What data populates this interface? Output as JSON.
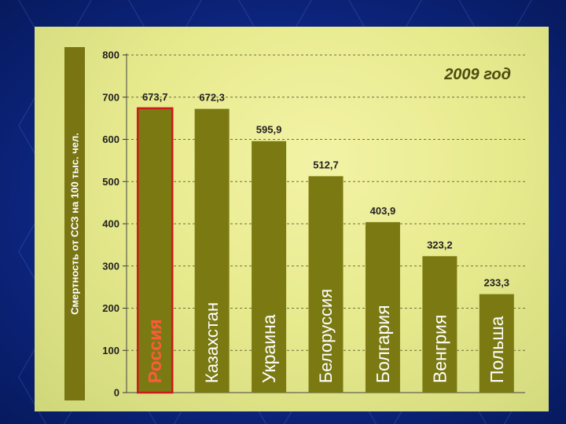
{
  "colors": {
    "slide_background": "#0d2a8c",
    "panel": "#e8ea8e",
    "bar": "#7b7a12",
    "bar_highlight": "#cc1a1a",
    "bar_label": "#ffffff",
    "highlight_label": "#ff5a3c",
    "axis_text": "#222222",
    "ylabel_box": "#787512",
    "annotation_text": "#4e4c10"
  },
  "chart_data": {
    "type": "bar",
    "title": "",
    "ylabel": "Смертность от ССЗ на 100 тыс. чел.",
    "xlabel": "",
    "annotation": "2009 год",
    "ylim": [
      0,
      800
    ],
    "yticks": [
      0,
      100,
      200,
      300,
      400,
      500,
      600,
      700,
      800
    ],
    "grid": "horizontal-dashed",
    "categories": [
      "Россия",
      "Казахстан",
      "Украина",
      "Белоруссия",
      "Болгария",
      "Венгрия",
      "Польша"
    ],
    "values": [
      673.7,
      672.3,
      595.9,
      512.7,
      403.9,
      323.2,
      233.3
    ],
    "value_labels": [
      "673,7",
      "672,3",
      "595,9",
      "512,7",
      "403,9",
      "323,2",
      "233,3"
    ],
    "highlighted_category": "Россия"
  }
}
